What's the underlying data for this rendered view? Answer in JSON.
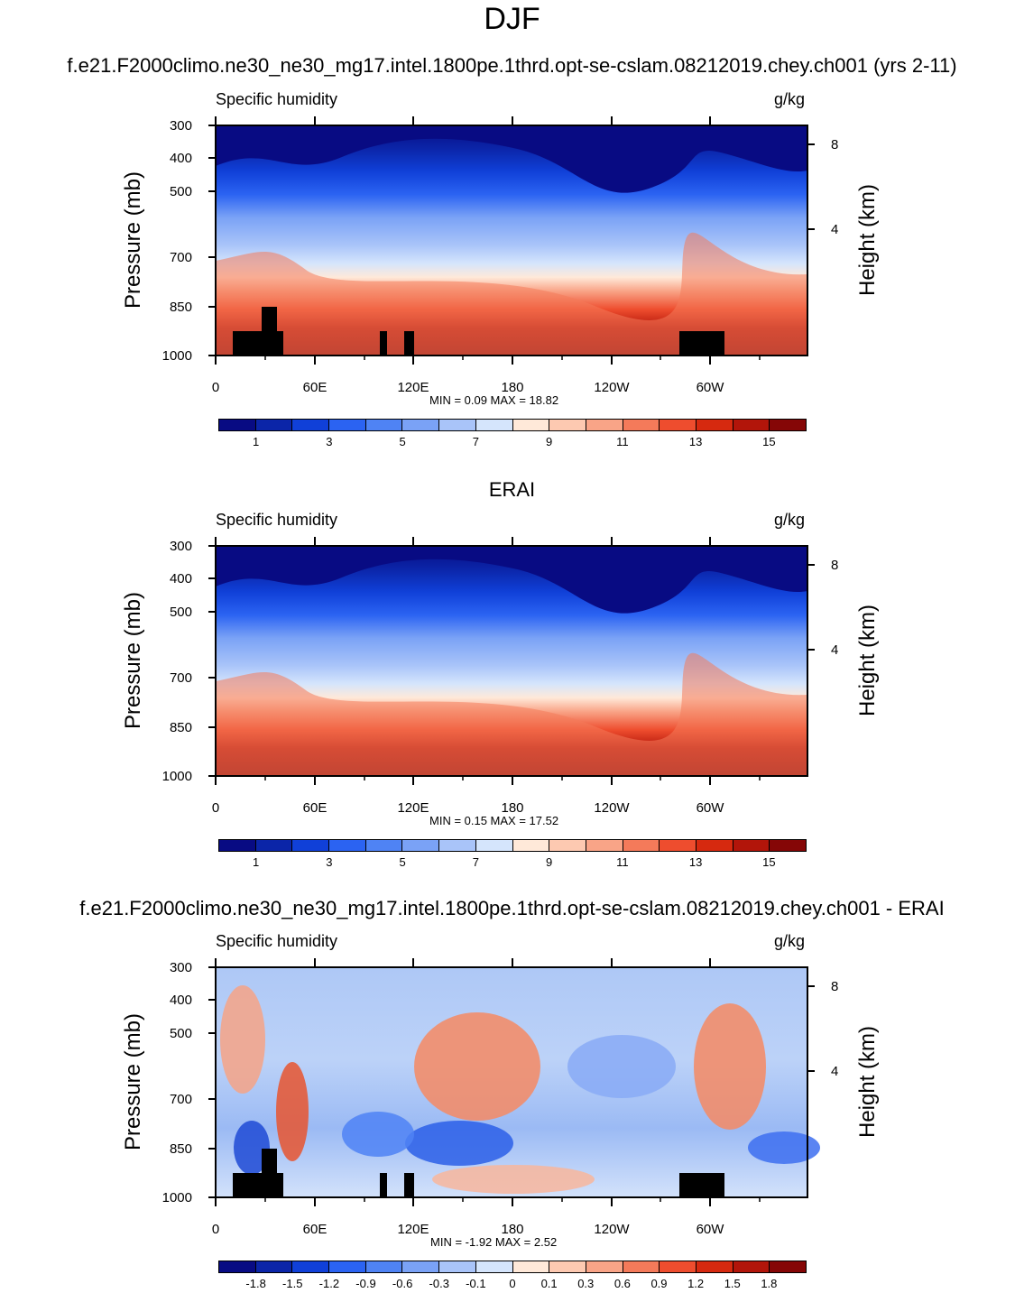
{
  "main_title": "DJF",
  "colors": {
    "scale": [
      "#080b83",
      "#0b25a8",
      "#1040d8",
      "#2b63f2",
      "#4f83f4",
      "#7aa2f6",
      "#a9c4f9",
      "#d5e5fc",
      "#ffe9d9",
      "#fdc9b1",
      "#f9a487",
      "#f47a5a",
      "#ee4d2e",
      "#d6290f",
      "#b2150a",
      "#850606"
    ]
  },
  "chart_data": [
    {
      "type": "heatmap",
      "title": "f.e21.F2000climo.ne30_ne30_mg17.intel.1800pe.1thrd.opt-se-cslam.08212019.chey.ch001 (yrs 2-11)",
      "left_label": "Specific humidity",
      "units": "g/kg",
      "ylabel": "Pressure (mb)",
      "ylabel_right": "Height (km)",
      "y_ticks": [
        "300",
        "400",
        "500",
        "700",
        "850",
        "1000"
      ],
      "y_right_ticks": [
        "8",
        "4"
      ],
      "x_ticks": [
        "0",
        "60E",
        "120E",
        "180",
        "120W",
        "60W"
      ],
      "xlim": [
        0,
        360
      ],
      "ylim": [
        1000,
        300
      ],
      "min": "0.09",
      "max": "18.82",
      "minmax_text": "MIN =   0.09  MAX =  18.82",
      "colorbar_labels": [
        "1",
        "3",
        "5",
        "7",
        "9",
        "11",
        "13",
        "15"
      ]
    },
    {
      "type": "heatmap",
      "title": "ERAI",
      "left_label": "Specific humidity",
      "units": "g/kg",
      "ylabel": "Pressure (mb)",
      "ylabel_right": "Height (km)",
      "y_ticks": [
        "300",
        "400",
        "500",
        "700",
        "850",
        "1000"
      ],
      "y_right_ticks": [
        "8",
        "4"
      ],
      "x_ticks": [
        "0",
        "60E",
        "120E",
        "180",
        "120W",
        "60W"
      ],
      "xlim": [
        0,
        360
      ],
      "ylim": [
        1000,
        300
      ],
      "min": "0.15",
      "max": "17.52",
      "minmax_text": "MIN =   0.15  MAX =  17.52",
      "colorbar_labels": [
        "1",
        "3",
        "5",
        "7",
        "9",
        "11",
        "13",
        "15"
      ]
    },
    {
      "type": "heatmap",
      "title": "f.e21.F2000climo.ne30_ne30_mg17.intel.1800pe.1thrd.opt-se-cslam.08212019.chey.ch001 - ERAI",
      "left_label": "Specific humidity",
      "units": "g/kg",
      "ylabel": "Pressure (mb)",
      "ylabel_right": "Height (km)",
      "y_ticks": [
        "300",
        "400",
        "500",
        "700",
        "850",
        "1000"
      ],
      "y_right_ticks": [
        "8",
        "4"
      ],
      "x_ticks": [
        "0",
        "60E",
        "120E",
        "180",
        "120W",
        "60W"
      ],
      "xlim": [
        0,
        360
      ],
      "ylim": [
        1000,
        300
      ],
      "min": "-1.92",
      "max": "2.52",
      "minmax_text": "MIN =  -1.92  MAX =   2.52",
      "colorbar_labels": [
        "-1.8",
        "-1.5",
        "-1.2",
        "-0.9",
        "-0.6",
        "-0.3",
        "-0.1",
        "0",
        "0.1",
        "0.3",
        "0.6",
        "0.9",
        "1.2",
        "1.5",
        "1.8"
      ]
    }
  ]
}
